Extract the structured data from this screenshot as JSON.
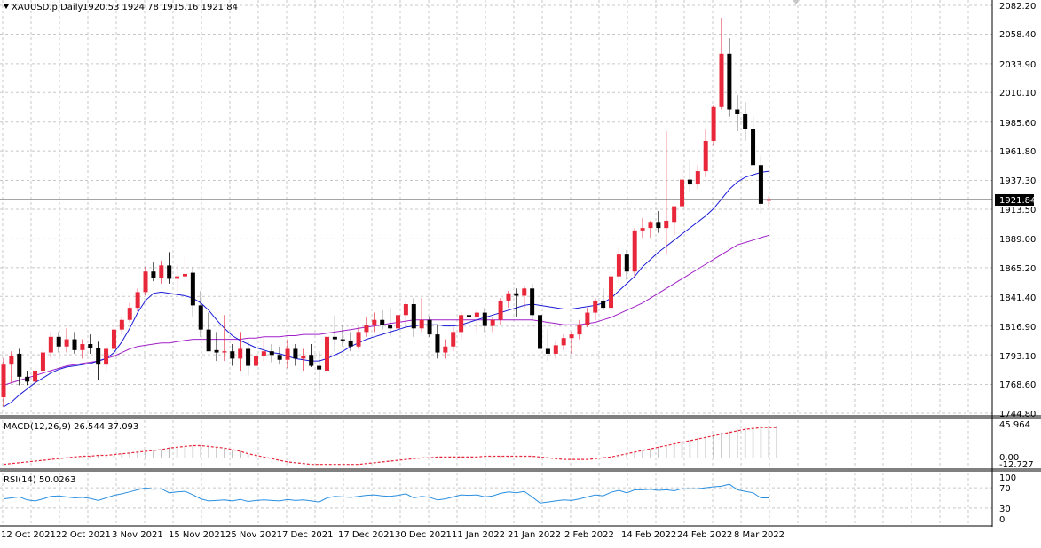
{
  "header": {
    "symbol": "XAUUSD.p,Daily",
    "ohlc": "1920.53 1924.78 1915.16 1921.84"
  },
  "price_axis": {
    "labels": [
      "2082.20",
      "2058.40",
      "2033.90",
      "2010.10",
      "1985.60",
      "1961.80",
      "1937.30",
      "1913.50",
      "1889.00",
      "1865.20",
      "1841.40",
      "1816.90",
      "1793.10",
      "1768.60",
      "1744.80"
    ],
    "current_price": "1921.84"
  },
  "macd": {
    "label": "MACD(12,26,9) 26.544 37.093",
    "axis_top": "45.964",
    "axis_zero": "0.00",
    "axis_bottom": "-12.727"
  },
  "rsi": {
    "label": "RSI(14) 50.0263",
    "levels": [
      "100",
      "70",
      "30",
      "0"
    ]
  },
  "time_axis": {
    "labels": [
      "12 Oct 2021",
      "22 Oct 2021",
      "3 Nov 2021",
      "15 Nov 2021",
      "25 Nov 2021",
      "7 Dec 2021",
      "17 Dec 2021",
      "30 Dec 2021",
      "11 Jan 2022",
      "21 Jan 2022",
      "2 Feb 2022",
      "14 Feb 2022",
      "24 Feb 2022",
      "8 Mar 2022"
    ]
  },
  "colors": {
    "bull": "#e8273b",
    "bear": "#000000",
    "ma_fast": "#1a1ad8",
    "ma_slow": "#a020c8",
    "macd_signal": "#e8273b",
    "macd_hist": "#bdbdbd",
    "rsi_line": "#2a8fe0"
  },
  "chart_data": {
    "type": "candlestick",
    "symbol": "XAUUSD.p",
    "timeframe": "Daily",
    "current": {
      "open": 1920.53,
      "high": 1924.78,
      "low": 1915.16,
      "close": 1921.84
    },
    "ylim": [
      1744.8,
      2082.2
    ],
    "candles": [
      [
        1758,
        1790,
        1750,
        1785
      ],
      [
        1785,
        1796,
        1770,
        1792
      ],
      [
        1794,
        1798,
        1768,
        1775
      ],
      [
        1775,
        1780,
        1768,
        1771
      ],
      [
        1771,
        1784,
        1766,
        1780
      ],
      [
        1780,
        1800,
        1777,
        1795
      ],
      [
        1795,
        1812,
        1790,
        1808
      ],
      [
        1808,
        1812,
        1795,
        1800
      ],
      [
        1800,
        1815,
        1795,
        1806
      ],
      [
        1806,
        1812,
        1794,
        1797
      ],
      [
        1797,
        1806,
        1790,
        1802
      ],
      [
        1802,
        1810,
        1794,
        1799
      ],
      [
        1799,
        1804,
        1772,
        1785
      ],
      [
        1785,
        1800,
        1780,
        1798
      ],
      [
        1798,
        1816,
        1796,
        1814
      ],
      [
        1814,
        1825,
        1810,
        1822
      ],
      [
        1822,
        1836,
        1820,
        1832
      ],
      [
        1832,
        1848,
        1829,
        1845
      ],
      [
        1845,
        1866,
        1842,
        1862
      ],
      [
        1862,
        1870,
        1854,
        1857
      ],
      [
        1857,
        1871,
        1852,
        1867
      ],
      [
        1867,
        1878,
        1852,
        1856
      ],
      [
        1856,
        1868,
        1846,
        1858
      ],
      [
        1858,
        1874,
        1853,
        1860
      ],
      [
        1861,
        1866,
        1824,
        1834
      ],
      [
        1834,
        1846,
        1808,
        1814
      ],
      [
        1814,
        1828,
        1798,
        1796
      ],
      [
        1797,
        1812,
        1788,
        1795
      ],
      [
        1795,
        1826,
        1788,
        1796
      ],
      [
        1796,
        1802,
        1784,
        1790
      ],
      [
        1790,
        1812,
        1780,
        1798
      ],
      [
        1798,
        1804,
        1776,
        1784
      ],
      [
        1784,
        1794,
        1778,
        1792
      ],
      [
        1792,
        1806,
        1788,
        1796
      ],
      [
        1796,
        1802,
        1787,
        1793
      ],
      [
        1793,
        1800,
        1785,
        1789
      ],
      [
        1789,
        1806,
        1782,
        1798
      ],
      [
        1798,
        1802,
        1784,
        1790
      ],
      [
        1790,
        1798,
        1780,
        1792
      ],
      [
        1793,
        1802,
        1783,
        1784
      ],
      [
        1784,
        1796,
        1762,
        1781
      ],
      [
        1780,
        1814,
        1779,
        1808
      ],
      [
        1808,
        1826,
        1796,
        1806
      ],
      [
        1806,
        1818,
        1800,
        1805
      ],
      [
        1805,
        1812,
        1796,
        1800
      ],
      [
        1800,
        1816,
        1798,
        1812
      ],
      [
        1812,
        1824,
        1808,
        1818
      ],
      [
        1818,
        1828,
        1812,
        1822
      ],
      [
        1822,
        1830,
        1814,
        1818
      ],
      [
        1818,
        1832,
        1808,
        1815
      ],
      [
        1815,
        1828,
        1812,
        1826
      ],
      [
        1826,
        1838,
        1818,
        1835
      ],
      [
        1835,
        1840,
        1808,
        1815
      ],
      [
        1815,
        1840,
        1812,
        1822
      ],
      [
        1822,
        1825,
        1808,
        1810
      ],
      [
        1810,
        1818,
        1790,
        1795
      ],
      [
        1795,
        1806,
        1790,
        1800
      ],
      [
        1800,
        1816,
        1796,
        1812
      ],
      [
        1812,
        1828,
        1806,
        1826
      ],
      [
        1826,
        1833,
        1818,
        1824
      ],
      [
        1824,
        1830,
        1812,
        1828
      ],
      [
        1828,
        1832,
        1812,
        1817
      ],
      [
        1817,
        1824,
        1812,
        1822
      ],
      [
        1822,
        1840,
        1818,
        1838
      ],
      [
        1838,
        1846,
        1832,
        1844
      ],
      [
        1844,
        1848,
        1824,
        1842
      ],
      [
        1842,
        1850,
        1832,
        1848
      ],
      [
        1848,
        1852,
        1822,
        1826
      ],
      [
        1826,
        1830,
        1790,
        1798
      ],
      [
        1798,
        1814,
        1788,
        1794
      ],
      [
        1794,
        1804,
        1790,
        1801
      ],
      [
        1801,
        1810,
        1797,
        1807
      ],
      [
        1807,
        1812,
        1794,
        1810
      ],
      [
        1810,
        1822,
        1806,
        1818
      ],
      [
        1818,
        1832,
        1816,
        1828
      ],
      [
        1828,
        1840,
        1822,
        1838
      ],
      [
        1838,
        1848,
        1830,
        1832
      ],
      [
        1832,
        1862,
        1828,
        1858
      ],
      [
        1858,
        1882,
        1852,
        1876
      ],
      [
        1876,
        1880,
        1855,
        1862
      ],
      [
        1862,
        1898,
        1858,
        1896
      ],
      [
        1896,
        1906,
        1890,
        1898
      ],
      [
        1898,
        1904,
        1890,
        1903
      ],
      [
        1903,
        1912,
        1894,
        1898
      ],
      [
        1898,
        1978,
        1876,
        1904
      ],
      [
        1903,
        1915,
        1892,
        1916
      ],
      [
        1916,
        1950,
        1912,
        1938
      ],
      [
        1938,
        1955,
        1928,
        1934
      ],
      [
        1934,
        1950,
        1930,
        1945
      ],
      [
        1945,
        1980,
        1940,
        1970
      ],
      [
        1970,
        2000,
        1966,
        1998
      ],
      [
        1998,
        2072,
        1996,
        2042
      ],
      [
        2042,
        2055,
        1990,
        1996
      ],
      [
        1996,
        2008,
        1978,
        1992
      ],
      [
        1992,
        2002,
        1970,
        1980
      ],
      [
        1980,
        1990,
        1950,
        1950
      ],
      [
        1950,
        1958,
        1910,
        1918
      ],
      [
        1920.53,
        1924.78,
        1915.16,
        1921.84
      ]
    ],
    "ma_fast": [
      1750,
      1754,
      1760,
      1765,
      1770,
      1774,
      1778,
      1781,
      1783,
      1784,
      1785,
      1786,
      1788,
      1790,
      1795,
      1804,
      1815,
      1828,
      1838,
      1844,
      1845,
      1844,
      1843,
      1842,
      1840,
      1836,
      1830,
      1822,
      1815,
      1809,
      1805,
      1802,
      1799,
      1797,
      1795,
      1794,
      1792,
      1790,
      1789,
      1788,
      1788,
      1790,
      1793,
      1796,
      1800,
      1803,
      1806,
      1808,
      1810,
      1812,
      1814,
      1816,
      1817,
      1818,
      1818,
      1818,
      1817,
      1817,
      1818,
      1820,
      1822,
      1824,
      1826,
      1828,
      1830,
      1832,
      1834,
      1835,
      1834,
      1833,
      1832,
      1831,
      1831,
      1832,
      1833,
      1834,
      1836,
      1840,
      1846,
      1852,
      1858,
      1866,
      1872,
      1878,
      1883,
      1888,
      1893,
      1898,
      1903,
      1908,
      1914,
      1922,
      1930,
      1936,
      1940,
      1942,
      1944,
      1945
    ],
    "ma_slow": [
      1768,
      1770,
      1772,
      1774,
      1776,
      1778,
      1780,
      1782,
      1784,
      1785,
      1786,
      1787,
      1788,
      1790,
      1792,
      1795,
      1798,
      1800,
      1801,
      1802,
      1803,
      1803,
      1804,
      1805,
      1806,
      1806,
      1806,
      1806,
      1806,
      1806,
      1806,
      1807,
      1807,
      1808,
      1808,
      1808,
      1809,
      1809,
      1810,
      1810,
      1810,
      1811,
      1812,
      1813,
      1814,
      1815,
      1816,
      1817,
      1818,
      1819,
      1820,
      1821,
      1822,
      1822,
      1822,
      1822,
      1822,
      1822,
      1822,
      1822,
      1822,
      1822,
      1822,
      1822,
      1822,
      1822,
      1822,
      1822,
      1821,
      1820,
      1819,
      1818,
      1818,
      1818,
      1819,
      1820,
      1822,
      1824,
      1827,
      1830,
      1833,
      1836,
      1840,
      1844,
      1848,
      1852,
      1856,
      1860,
      1864,
      1868,
      1872,
      1876,
      1880,
      1884,
      1886,
      1888,
      1890,
      1892
    ],
    "macd_signal": [
      -8,
      -7,
      -6,
      -5,
      -4,
      -3,
      -2,
      -1,
      0,
      1,
      2,
      2,
      3,
      3,
      4,
      5,
      6,
      7,
      8,
      9,
      10,
      12,
      13,
      14,
      15,
      15,
      14,
      13,
      12,
      10,
      8,
      5,
      3,
      1,
      -1,
      -3,
      -5,
      -6,
      -7,
      -8,
      -8,
      -8,
      -8,
      -8,
      -8,
      -8,
      -7,
      -6,
      -5,
      -4,
      -3,
      -2,
      -1,
      0,
      0,
      1,
      1,
      1,
      1,
      1,
      1,
      2,
      2,
      2,
      2,
      2,
      2,
      2,
      1,
      0,
      -1,
      -2,
      -2,
      -2,
      -2,
      -1,
      0,
      1,
      3,
      5,
      7,
      9,
      11,
      13,
      15,
      17,
      19,
      21,
      23,
      25,
      27,
      29,
      31,
      33,
      35,
      36,
      37,
      37,
      37
    ],
    "rsi": [
      48,
      50,
      52,
      46,
      44,
      48,
      53,
      54,
      52,
      50,
      51,
      49,
      45,
      50,
      55,
      58,
      62,
      66,
      70,
      67,
      68,
      60,
      62,
      63,
      56,
      48,
      44,
      45,
      46,
      44,
      47,
      43,
      45,
      46,
      45,
      44,
      47,
      45,
      46,
      44,
      42,
      50,
      53,
      52,
      51,
      53,
      55,
      56,
      54,
      53,
      55,
      58,
      50,
      53,
      51,
      46,
      48,
      52,
      56,
      55,
      56,
      52,
      54,
      59,
      62,
      60,
      63,
      52,
      40,
      42,
      44,
      46,
      45,
      48,
      52,
      56,
      54,
      61,
      65,
      60,
      66,
      66,
      67,
      65,
      66,
      64,
      68,
      68,
      68,
      70,
      72,
      73,
      77,
      66,
      63,
      60,
      50,
      50
    ]
  }
}
